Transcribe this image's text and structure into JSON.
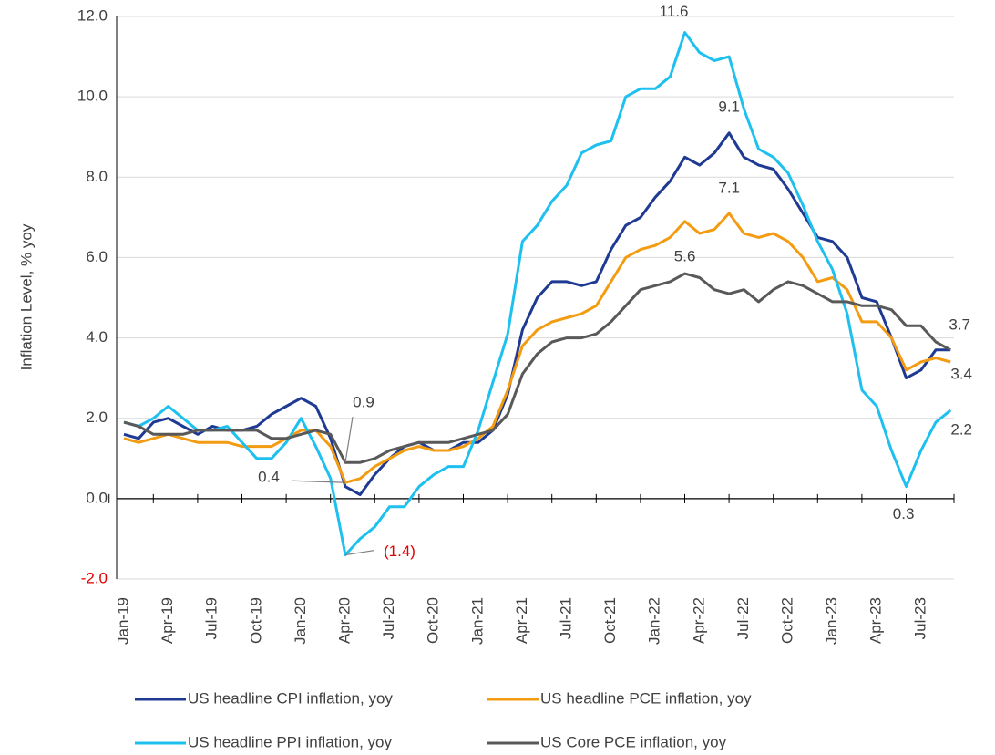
{
  "chart_data": {
    "type": "line",
    "y_label": "Inflation Level, % yoy",
    "categories": [
      "Jan-19",
      null,
      null,
      "Apr-19",
      null,
      null,
      "Jul-19",
      null,
      null,
      "Oct-19",
      null,
      null,
      "Jan-20",
      null,
      null,
      "Apr-20",
      null,
      null,
      "Jul-20",
      null,
      null,
      "Oct-20",
      null,
      null,
      "Jan-21",
      null,
      null,
      "Apr-21",
      null,
      null,
      "Jul-21",
      null,
      null,
      "Oct-21",
      null,
      null,
      "Jan-22",
      null,
      null,
      "Apr-22",
      null,
      null,
      "Jul-22",
      null,
      null,
      "Oct-22",
      null,
      null,
      "Jan-23",
      null,
      null,
      "Apr-23",
      null,
      null,
      "Jul-23",
      null,
      null
    ],
    "ylim": [
      -2,
      12
    ],
    "yticks": [
      {
        "value": -2,
        "label": "-2.0"
      },
      {
        "value": 0,
        "label": "0.0"
      },
      {
        "value": 2,
        "label": "2.0"
      },
      {
        "value": 4,
        "label": "4.0"
      },
      {
        "value": 6,
        "label": "6.0"
      },
      {
        "value": 8,
        "label": "8.0"
      },
      {
        "value": 10,
        "label": "10.0"
      },
      {
        "value": 12,
        "label": "12.0"
      }
    ],
    "grid": true,
    "series": [
      {
        "name": "US headline CPI inflation, yoy",
        "color": "#1f3a93",
        "values": [
          1.6,
          1.5,
          1.9,
          2.0,
          1.8,
          1.6,
          1.8,
          1.7,
          1.7,
          1.8,
          2.1,
          2.3,
          2.5,
          2.3,
          1.5,
          0.3,
          0.1,
          0.6,
          1.0,
          1.3,
          1.4,
          1.2,
          1.2,
          1.4,
          1.4,
          1.7,
          2.6,
          4.2,
          5.0,
          5.4,
          5.4,
          5.3,
          5.4,
          6.2,
          6.8,
          7.0,
          7.5,
          7.9,
          8.5,
          8.3,
          8.6,
          9.1,
          8.5,
          8.3,
          8.2,
          7.7,
          7.1,
          6.5,
          6.4,
          6.0,
          5.0,
          4.9,
          4.0,
          3.0,
          3.2,
          3.7,
          3.7
        ],
        "value_labels": [
          null,
          null,
          null,
          null,
          null,
          null,
          null,
          null,
          null,
          null,
          null,
          null,
          null,
          null,
          null,
          null,
          null,
          null,
          null,
          null,
          null,
          null,
          null,
          null,
          null,
          null,
          null,
          null,
          null,
          null,
          null,
          null,
          null,
          null,
          null,
          null,
          null,
          null,
          null,
          null,
          null,
          "9.1",
          null,
          null,
          null,
          null,
          null,
          null,
          null,
          null,
          null,
          null,
          null,
          null,
          null,
          null,
          "3.7"
        ]
      },
      {
        "name": "US headline PCE inflation, yoy",
        "color": "#f39c12",
        "values": [
          1.5,
          1.4,
          1.5,
          1.6,
          1.5,
          1.4,
          1.4,
          1.4,
          1.3,
          1.3,
          1.3,
          1.5,
          1.7,
          1.7,
          1.3,
          0.4,
          0.5,
          0.8,
          1.0,
          1.2,
          1.3,
          1.2,
          1.2,
          1.3,
          1.5,
          1.8,
          2.7,
          3.8,
          4.2,
          4.4,
          4.5,
          4.6,
          4.8,
          5.4,
          6.0,
          6.2,
          6.3,
          6.5,
          6.9,
          6.6,
          6.7,
          7.1,
          6.6,
          6.5,
          6.6,
          6.4,
          6.0,
          5.4,
          5.5,
          5.2,
          4.4,
          4.4,
          4.0,
          3.2,
          3.4,
          3.5,
          3.4
        ],
        "value_labels": [
          null,
          null,
          null,
          null,
          null,
          null,
          null,
          null,
          null,
          null,
          null,
          null,
          null,
          null,
          null,
          "0.4",
          null,
          null,
          null,
          null,
          null,
          null,
          null,
          null,
          null,
          null,
          null,
          null,
          null,
          null,
          null,
          null,
          null,
          null,
          null,
          null,
          null,
          null,
          null,
          null,
          null,
          "7.1",
          null,
          null,
          null,
          null,
          null,
          null,
          null,
          null,
          null,
          null,
          null,
          null,
          null,
          null,
          "3.4"
        ]
      },
      {
        "name": "US headline PPI inflation, yoy",
        "color": "#1ec0ef",
        "values": [
          1.9,
          1.8,
          2.0,
          2.3,
          2.0,
          1.7,
          1.7,
          1.8,
          1.4,
          1.0,
          1.0,
          1.4,
          2.0,
          1.3,
          0.5,
          -1.4,
          -1.0,
          -0.7,
          -0.2,
          -0.2,
          0.3,
          0.6,
          0.8,
          0.8,
          1.7,
          2.9,
          4.1,
          6.4,
          6.8,
          7.4,
          7.8,
          8.6,
          8.8,
          8.9,
          10.0,
          10.2,
          10.2,
          10.5,
          11.6,
          11.1,
          10.9,
          11.0,
          9.7,
          8.7,
          8.5,
          8.1,
          7.3,
          6.4,
          5.7,
          4.6,
          2.7,
          2.3,
          1.2,
          0.3,
          1.2,
          1.9,
          2.2
        ],
        "value_labels": [
          null,
          null,
          null,
          null,
          null,
          null,
          null,
          null,
          null,
          null,
          null,
          null,
          null,
          null,
          null,
          "(1.4)",
          null,
          null,
          null,
          null,
          null,
          null,
          null,
          null,
          null,
          null,
          null,
          null,
          null,
          null,
          null,
          null,
          null,
          null,
          null,
          null,
          null,
          null,
          "11.6",
          null,
          null,
          null,
          null,
          null,
          null,
          null,
          null,
          null,
          null,
          null,
          null,
          null,
          null,
          "0.3",
          null,
          null,
          "2.2"
        ]
      },
      {
        "name": "US Core PCE inflation, yoy",
        "color": "#595959",
        "values": [
          1.9,
          1.8,
          1.6,
          1.6,
          1.6,
          1.7,
          1.7,
          1.7,
          1.7,
          1.7,
          1.5,
          1.5,
          1.6,
          1.7,
          1.6,
          0.9,
          0.9,
          1.0,
          1.2,
          1.3,
          1.4,
          1.4,
          1.4,
          1.5,
          1.6,
          1.7,
          2.1,
          3.1,
          3.6,
          3.9,
          4.0,
          4.0,
          4.1,
          4.4,
          4.8,
          5.2,
          5.3,
          5.4,
          5.6,
          5.5,
          5.2,
          5.1,
          5.2,
          4.9,
          5.2,
          5.4,
          5.3,
          5.1,
          4.9,
          4.9,
          4.8,
          4.8,
          4.7,
          4.3,
          4.3,
          3.9,
          3.7
        ],
        "value_labels": [
          null,
          null,
          null,
          null,
          null,
          null,
          null,
          null,
          null,
          null,
          null,
          null,
          null,
          null,
          null,
          "0.9",
          null,
          null,
          null,
          null,
          null,
          null,
          null,
          null,
          null,
          null,
          null,
          null,
          null,
          null,
          null,
          null,
          null,
          null,
          null,
          null,
          null,
          null,
          "5.6",
          null,
          null,
          null,
          null,
          null,
          null,
          null,
          null,
          null,
          null,
          null,
          null,
          null,
          null,
          null,
          null,
          null,
          null
        ]
      }
    ]
  }
}
